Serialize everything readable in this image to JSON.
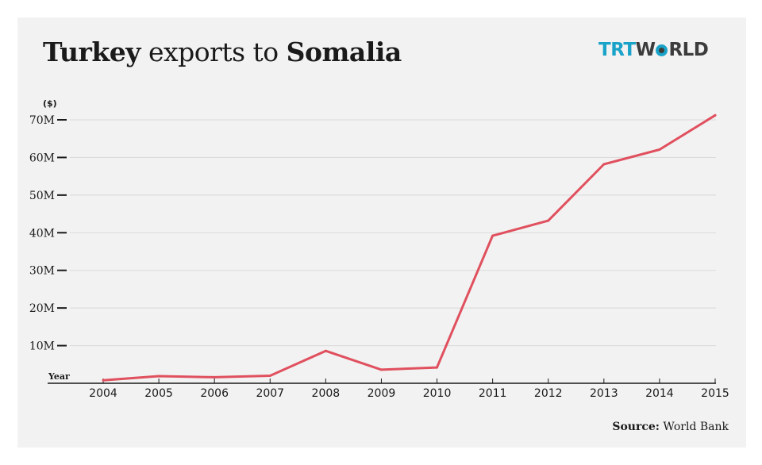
{
  "header": {
    "title_part1": "Turkey",
    "title_part2": " exports to ",
    "title_part3": "Somalia"
  },
  "logo": {
    "part1": "TRT",
    "part2_before_o": "W",
    "part2_after_o": "RLD",
    "accent_color": "#1aa3c9",
    "dark_color": "#3c3c3c"
  },
  "source": {
    "label": "Source:",
    "value": " World Bank"
  },
  "chart_data": {
    "type": "line",
    "x": [
      "2004",
      "2005",
      "2006",
      "2007",
      "2008",
      "2009",
      "2010",
      "2011",
      "2012",
      "2013",
      "2014",
      "2015"
    ],
    "series": [
      {
        "values": [
          0.8,
          1.9,
          1.6,
          2.0,
          8.6,
          3.6,
          4.2,
          39.2,
          43.2,
          58.2,
          62.1,
          71.2
        ],
        "color": "#e0505e"
      }
    ],
    "xlabel": "Year",
    "ylabel": "($)",
    "ylim": [
      0,
      70
    ],
    "yticks": [
      10,
      20,
      30,
      40,
      50,
      60,
      70
    ],
    "ytick_labels": [
      "10M",
      "20M",
      "30M",
      "40M",
      "50M",
      "60M",
      "70M"
    ],
    "grid": true
  }
}
